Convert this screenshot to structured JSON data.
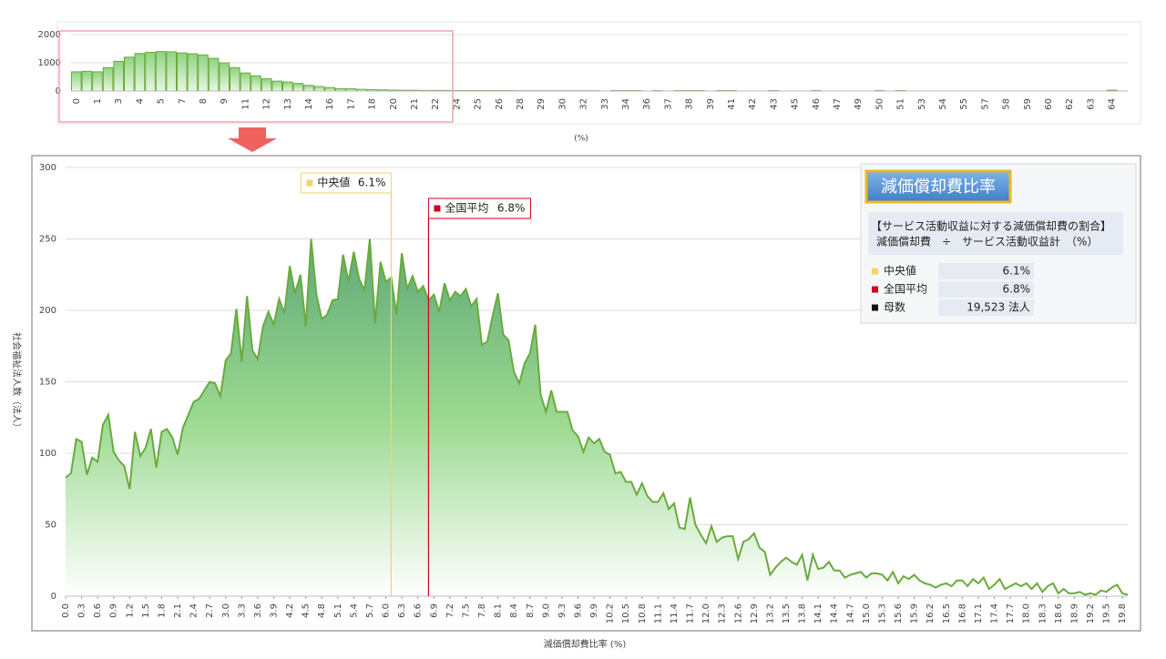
{
  "chart_data": [
    {
      "type": "bar",
      "color": "#6aaa3f",
      "categories": [
        "0",
        null,
        "1",
        null,
        "3",
        null,
        "4",
        null,
        "5",
        null,
        "7",
        null,
        "8",
        null,
        "9",
        null,
        "11",
        null,
        "12",
        null,
        "13",
        null,
        "14",
        null,
        "16",
        null,
        "17",
        null,
        "18",
        null,
        "20",
        null,
        "21",
        null,
        "22",
        null,
        "24",
        null,
        "25",
        null,
        "26",
        null,
        "28",
        null,
        "29",
        null,
        "30",
        null,
        "32",
        null,
        "33",
        null,
        "34",
        null,
        "36",
        null,
        "37",
        null,
        "38",
        null,
        "39",
        null,
        "41",
        null,
        "42",
        null,
        "43",
        null,
        "45",
        null,
        "46",
        null,
        "47",
        null,
        "49",
        null,
        "50",
        null,
        "51",
        null,
        "53",
        null,
        "54",
        null,
        "55",
        null,
        "57",
        null,
        "58",
        null,
        "59",
        null,
        "60",
        null,
        "62",
        null,
        "63",
        null,
        "64",
        null
      ],
      "values": [
        680,
        700,
        680,
        830,
        1050,
        1200,
        1330,
        1370,
        1400,
        1390,
        1350,
        1320,
        1280,
        1160,
        1000,
        830,
        640,
        540,
        440,
        350,
        320,
        270,
        200,
        160,
        120,
        80,
        80,
        60,
        50,
        40,
        30,
        25,
        25,
        20,
        20,
        20,
        15,
        15,
        15,
        15,
        15,
        15,
        10,
        10,
        10,
        10,
        10,
        10,
        10,
        10,
        0,
        15,
        15,
        15,
        0,
        15,
        0,
        15,
        15,
        15,
        0,
        15,
        15,
        0,
        0,
        0,
        15,
        0,
        0,
        0,
        15,
        0,
        0,
        0,
        0,
        0,
        15,
        0,
        15,
        0,
        0,
        0,
        0,
        0,
        0,
        0,
        0,
        0,
        0,
        0,
        0,
        0,
        0,
        0,
        0,
        0,
        0,
        0,
        30,
        0
      ],
      "ylim": [
        0,
        2000
      ],
      "yticks": [
        0,
        1000,
        2000
      ],
      "xlabel": "(%)",
      "grid": true
    },
    {
      "type": "area",
      "color": "#6aaa3f",
      "x": [
        0.0,
        0.1,
        0.2,
        0.3,
        0.4,
        0.5,
        0.6,
        0.7,
        0.8,
        0.9,
        1.0,
        1.1,
        1.2,
        1.3,
        1.4,
        1.5,
        1.6,
        1.7,
        1.8,
        1.9,
        2.0,
        2.1,
        2.2,
        2.3,
        2.4,
        2.5,
        2.6,
        2.7,
        2.8,
        2.9,
        3.0,
        3.1,
        3.2,
        3.3,
        3.4,
        3.5,
        3.6,
        3.7,
        3.8,
        3.9,
        4.0,
        4.1,
        4.2,
        4.3,
        4.4,
        4.5,
        4.6,
        4.7,
        4.8,
        4.9,
        5.0,
        5.1,
        5.2,
        5.3,
        5.4,
        5.5,
        5.6,
        5.7,
        5.8,
        5.9,
        6.0,
        6.1,
        6.2,
        6.3,
        6.4,
        6.5,
        6.6,
        6.7,
        6.8,
        6.9,
        7.0,
        7.1,
        7.2,
        7.3,
        7.4,
        7.5,
        7.6,
        7.7,
        7.8,
        7.9,
        8.0,
        8.1,
        8.2,
        8.3,
        8.4,
        8.5,
        8.6,
        8.7,
        8.8,
        8.9,
        9.0,
        9.1,
        9.2,
        9.3,
        9.4,
        9.5,
        9.6,
        9.7,
        9.8,
        9.9,
        10.0,
        10.1,
        10.2,
        10.3,
        10.4,
        10.5,
        10.6,
        10.7,
        10.8,
        10.9,
        11.0,
        11.1,
        11.2,
        11.3,
        11.4,
        11.5,
        11.6,
        11.7,
        11.8,
        11.9,
        12.0,
        12.1,
        12.2,
        12.3,
        12.4,
        12.5,
        12.6,
        12.7,
        12.8,
        12.9,
        13.0,
        13.1,
        13.2,
        13.3,
        13.4,
        13.5,
        13.6,
        13.7,
        13.8,
        13.9,
        14.0,
        14.1,
        14.2,
        14.3,
        14.4,
        14.5,
        14.6,
        14.7,
        14.8,
        14.9,
        15.0,
        15.1,
        15.2,
        15.3,
        15.4,
        15.5,
        15.6,
        15.7,
        15.8,
        15.9,
        16.0,
        16.1,
        16.2,
        16.3,
        16.4,
        16.5,
        16.6,
        16.7,
        16.8,
        16.9,
        17.0,
        17.1,
        17.2,
        17.3,
        17.4,
        17.5,
        17.6,
        17.7,
        17.8,
        17.9,
        18.0,
        18.1,
        18.2,
        18.3,
        18.4,
        18.5,
        18.6,
        18.7,
        18.8,
        18.9,
        19.0,
        19.1,
        19.2,
        19.3,
        19.4,
        19.5,
        19.6,
        19.7,
        19.8,
        19.9
      ],
      "values": [
        83,
        86,
        110,
        108,
        85,
        97,
        94,
        120,
        127,
        101,
        95,
        91,
        75,
        115,
        98,
        104,
        117,
        90,
        115,
        117,
        111,
        99,
        118,
        127,
        136,
        138,
        144,
        150,
        149,
        140,
        165,
        170,
        201,
        164,
        210,
        172,
        166,
        189,
        199,
        190,
        208,
        198,
        231,
        212,
        225,
        189,
        250,
        211,
        194,
        197,
        207,
        208,
        239,
        220,
        241,
        222,
        214,
        250,
        191,
        234,
        220,
        223,
        197,
        240,
        215,
        224,
        213,
        217,
        207,
        211,
        199,
        219,
        207,
        213,
        210,
        215,
        203,
        208,
        176,
        178,
        196,
        212,
        183,
        179,
        157,
        149,
        163,
        170,
        190,
        141,
        129,
        144,
        129,
        129,
        129,
        116,
        112,
        101,
        111,
        107,
        110,
        101,
        99,
        86,
        87,
        80,
        80,
        71,
        79,
        70,
        66,
        66,
        72,
        61,
        65,
        48,
        47,
        69,
        50,
        43,
        37,
        49,
        38,
        41,
        42,
        42,
        26,
        38,
        40,
        44,
        34,
        31,
        15,
        20,
        24,
        27,
        24,
        22,
        29,
        11,
        29,
        19,
        20,
        24,
        18,
        18,
        13,
        15,
        16,
        17,
        13,
        16,
        16,
        15,
        11,
        17,
        9,
        14,
        12,
        15,
        11,
        9,
        8,
        6,
        8,
        9,
        7,
        11,
        11,
        7,
        12,
        9,
        13,
        5,
        8,
        12,
        5,
        7,
        9,
        7,
        9,
        5,
        9,
        3,
        7,
        9,
        2,
        5,
        2,
        2,
        3,
        1,
        2,
        1,
        4,
        3,
        6,
        8,
        2,
        1
      ],
      "xlim": [
        0,
        19.9
      ],
      "xticks": [
        {
          "value": 0,
          "label": "0.0"
        },
        0.3,
        0.6,
        0.9,
        1.2,
        1.5,
        1.8,
        2.1,
        2.4,
        2.7,
        {
          "value": 3,
          "label": "3.0"
        },
        3.3,
        3.6,
        3.9,
        4.2,
        4.5,
        4.8,
        5.1,
        5.4,
        5.7,
        {
          "value": 6,
          "label": "6.0"
        },
        6.3,
        6.6,
        6.9,
        7.2,
        7.5,
        7.8,
        8.1,
        8.4,
        8.7,
        {
          "value": 9,
          "label": "9.0"
        },
        9.3,
        9.6,
        9.9,
        10.2,
        10.5,
        10.8,
        11.1,
        11.4,
        11.7,
        {
          "value": 12,
          "label": "12.0"
        },
        12.3,
        12.6,
        12.9,
        13.2,
        13.5,
        13.8,
        14.1,
        14.4,
        14.7,
        {
          "value": 15,
          "label": "15.0"
        },
        15.3,
        15.6,
        15.9,
        16.2,
        16.5,
        16.8,
        17.1,
        17.4,
        17.7,
        {
          "value": 18,
          "label": "18.0"
        },
        18.3,
        18.6,
        18.9,
        19.2,
        19.5,
        19.8
      ],
      "ylim": [
        0,
        300
      ],
      "yticks": [
        0,
        50,
        100,
        150,
        200,
        250,
        300
      ],
      "grid": true,
      "xlabel": "減価償却費比率 (%)",
      "ylabel": "社会福祉法人数（法人）",
      "reference_lines": [
        {
          "name": "中央値",
          "x": 6.1,
          "label": "6.1%",
          "color": "#f5d36b"
        },
        {
          "name": "全国平均",
          "x": 6.8,
          "label": "6.8%",
          "color": "#d0021b"
        }
      ]
    }
  ],
  "info": {
    "title": "減価償却費比率",
    "description": [
      "【サービス活動収益に対する減価償却費の割合】",
      "減価償却費　÷　サービス活動収益計　（%）"
    ],
    "count_label": "母数",
    "count": "19,523 法人"
  }
}
